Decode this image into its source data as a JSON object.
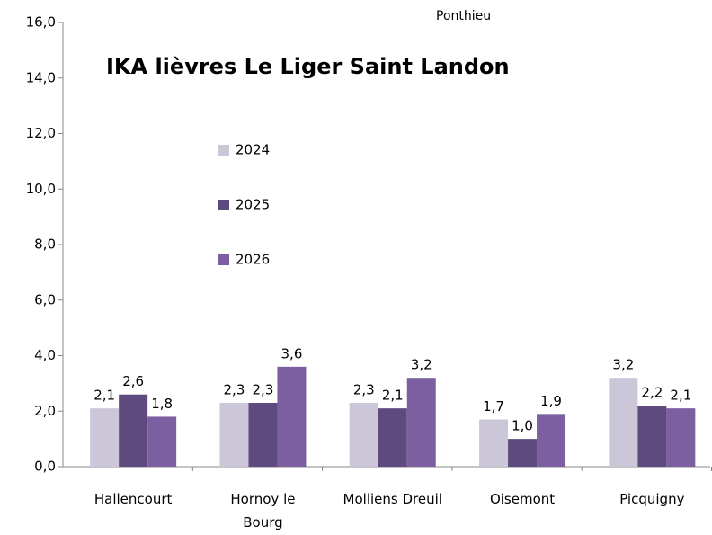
{
  "chart_data": {
    "type": "bar",
    "title": "IKA lièvres Le Liger Saint Landon",
    "subtitle": "Ponthieu",
    "categories": [
      "Hallencourt",
      "Hornoy le Bourg",
      "Molliens Dreuil",
      "Oisemont",
      "Picquigny"
    ],
    "series": [
      {
        "name": "2024",
        "color": "#ccc6d9",
        "values": [
          2.1,
          2.3,
          2.3,
          1.7,
          3.2
        ],
        "value_labels": [
          "2,1",
          "2,3",
          "2,3",
          "1,7",
          "3,2"
        ]
      },
      {
        "name": "2025",
        "color": "#5e4a7e",
        "values": [
          2.6,
          2.3,
          2.1,
          1.0,
          2.2
        ],
        "value_labels": [
          "2,6",
          "2,3",
          "2,1",
          "1,0",
          "2,2"
        ]
      },
      {
        "name": "2026",
        "color": "#7b5fa0",
        "values": [
          1.8,
          3.6,
          3.2,
          1.9,
          2.1
        ],
        "value_labels": [
          "1,8",
          "3,6",
          "3,2",
          "1,9",
          "2,1"
        ]
      }
    ],
    "ylim": [
      0,
      16
    ],
    "yticks": [
      {
        "value": 0,
        "label": "0,0"
      },
      {
        "value": 2,
        "label": "2,0"
      },
      {
        "value": 4,
        "label": "4,0"
      },
      {
        "value": 6,
        "label": "6,0"
      },
      {
        "value": 8,
        "label": "8,0"
      },
      {
        "value": 10,
        "label": "10,0"
      },
      {
        "value": 12,
        "label": "12,0"
      },
      {
        "value": 14,
        "label": "14,0"
      },
      {
        "value": 16,
        "label": "16,0"
      }
    ],
    "grid": false,
    "legend": "upper left"
  }
}
